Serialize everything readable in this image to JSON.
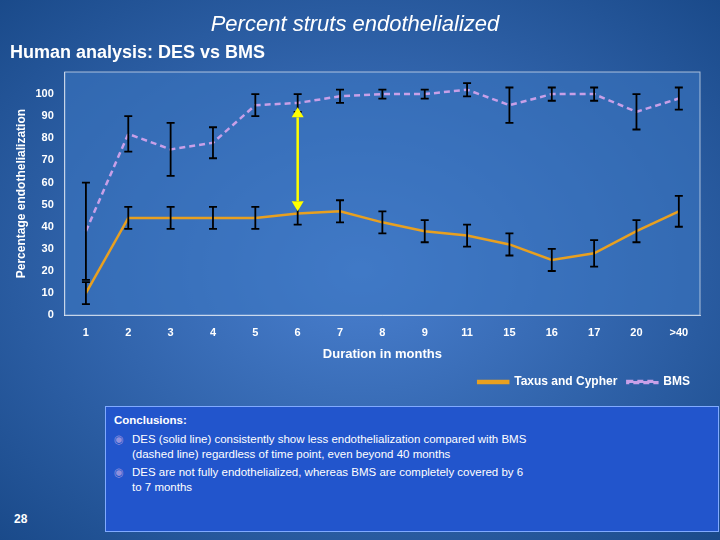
{
  "chart_data": {
    "type": "line",
    "title": "Percent struts endothelialized",
    "subtitle": "Human analysis: DES vs BMS",
    "xlabel": "Duration in months",
    "ylabel": "Percentage endothelialization",
    "categories": [
      "1",
      "2",
      "3",
      "4",
      "5",
      "6",
      "7",
      "8",
      "9",
      "11",
      "15",
      "16",
      "17",
      "20",
      ">40"
    ],
    "series": [
      {
        "name": "Taxus and Cypher",
        "color": "#E8A020",
        "line_style": "solid",
        "values": [
          10,
          44,
          44,
          44,
          44,
          46,
          47,
          42,
          38,
          36,
          32,
          25,
          28,
          38,
          47
        ],
        "yerr": [
          5,
          5,
          5,
          5,
          5,
          5,
          5,
          5,
          5,
          5,
          5,
          5,
          6,
          5,
          7
        ]
      },
      {
        "name": "BMS",
        "color": "#C8A0E8",
        "line_style": "dashed",
        "values": [
          38,
          82,
          75,
          78,
          95,
          96,
          99,
          100,
          100,
          102,
          95,
          100,
          100,
          92,
          98
        ],
        "yerr": [
          22,
          8,
          12,
          7,
          5,
          4,
          3,
          2,
          2,
          3,
          8,
          3,
          3,
          8,
          5
        ]
      }
    ],
    "ylim": [
      0,
      110
    ],
    "yticks": [
      0,
      10,
      20,
      30,
      40,
      50,
      60,
      70,
      80,
      90,
      100
    ],
    "grid": false,
    "legend": "lower right",
    "annotations": [
      {
        "type": "arrow",
        "x": "6",
        "y_start": 94,
        "y_end": 47,
        "color": "#FFFF00"
      },
      {
        "type": "box",
        "title": "Conclusions:",
        "bullet": "◉",
        "items": [
          [
            "DES (solid line) consistently show less endothelialization compared with BMS",
            "(dashed line) regardless of time point, even beyond 40 months"
          ],
          [
            "DES are not fully endothelialized, whereas BMS are completely covered by 6",
            "to 7 months"
          ]
        ]
      },
      {
        "type": "text",
        "text": "28"
      }
    ]
  }
}
